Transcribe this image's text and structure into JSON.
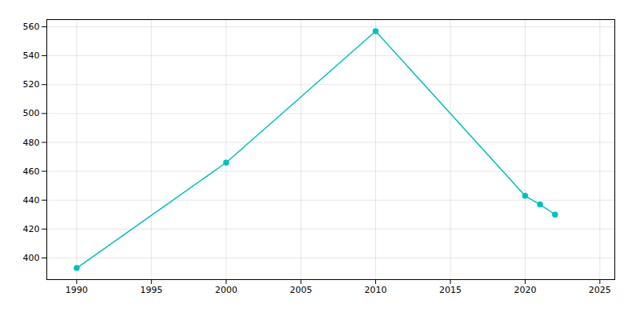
{
  "chart_data": {
    "type": "line",
    "x": [
      1990,
      2000,
      2010,
      2020,
      2021,
      2022
    ],
    "values": [
      393,
      466,
      557,
      443,
      437,
      430
    ],
    "color": "#00BFBF",
    "marker": "circle",
    "xlim": [
      1988,
      2026
    ],
    "xticks": [
      1990,
      1995,
      2000,
      2005,
      2010,
      2015,
      2020,
      2025
    ],
    "ylim": [
      385,
      565
    ],
    "yticks": [
      400,
      420,
      440,
      460,
      480,
      500,
      520,
      540,
      560
    ],
    "grid": true
  }
}
